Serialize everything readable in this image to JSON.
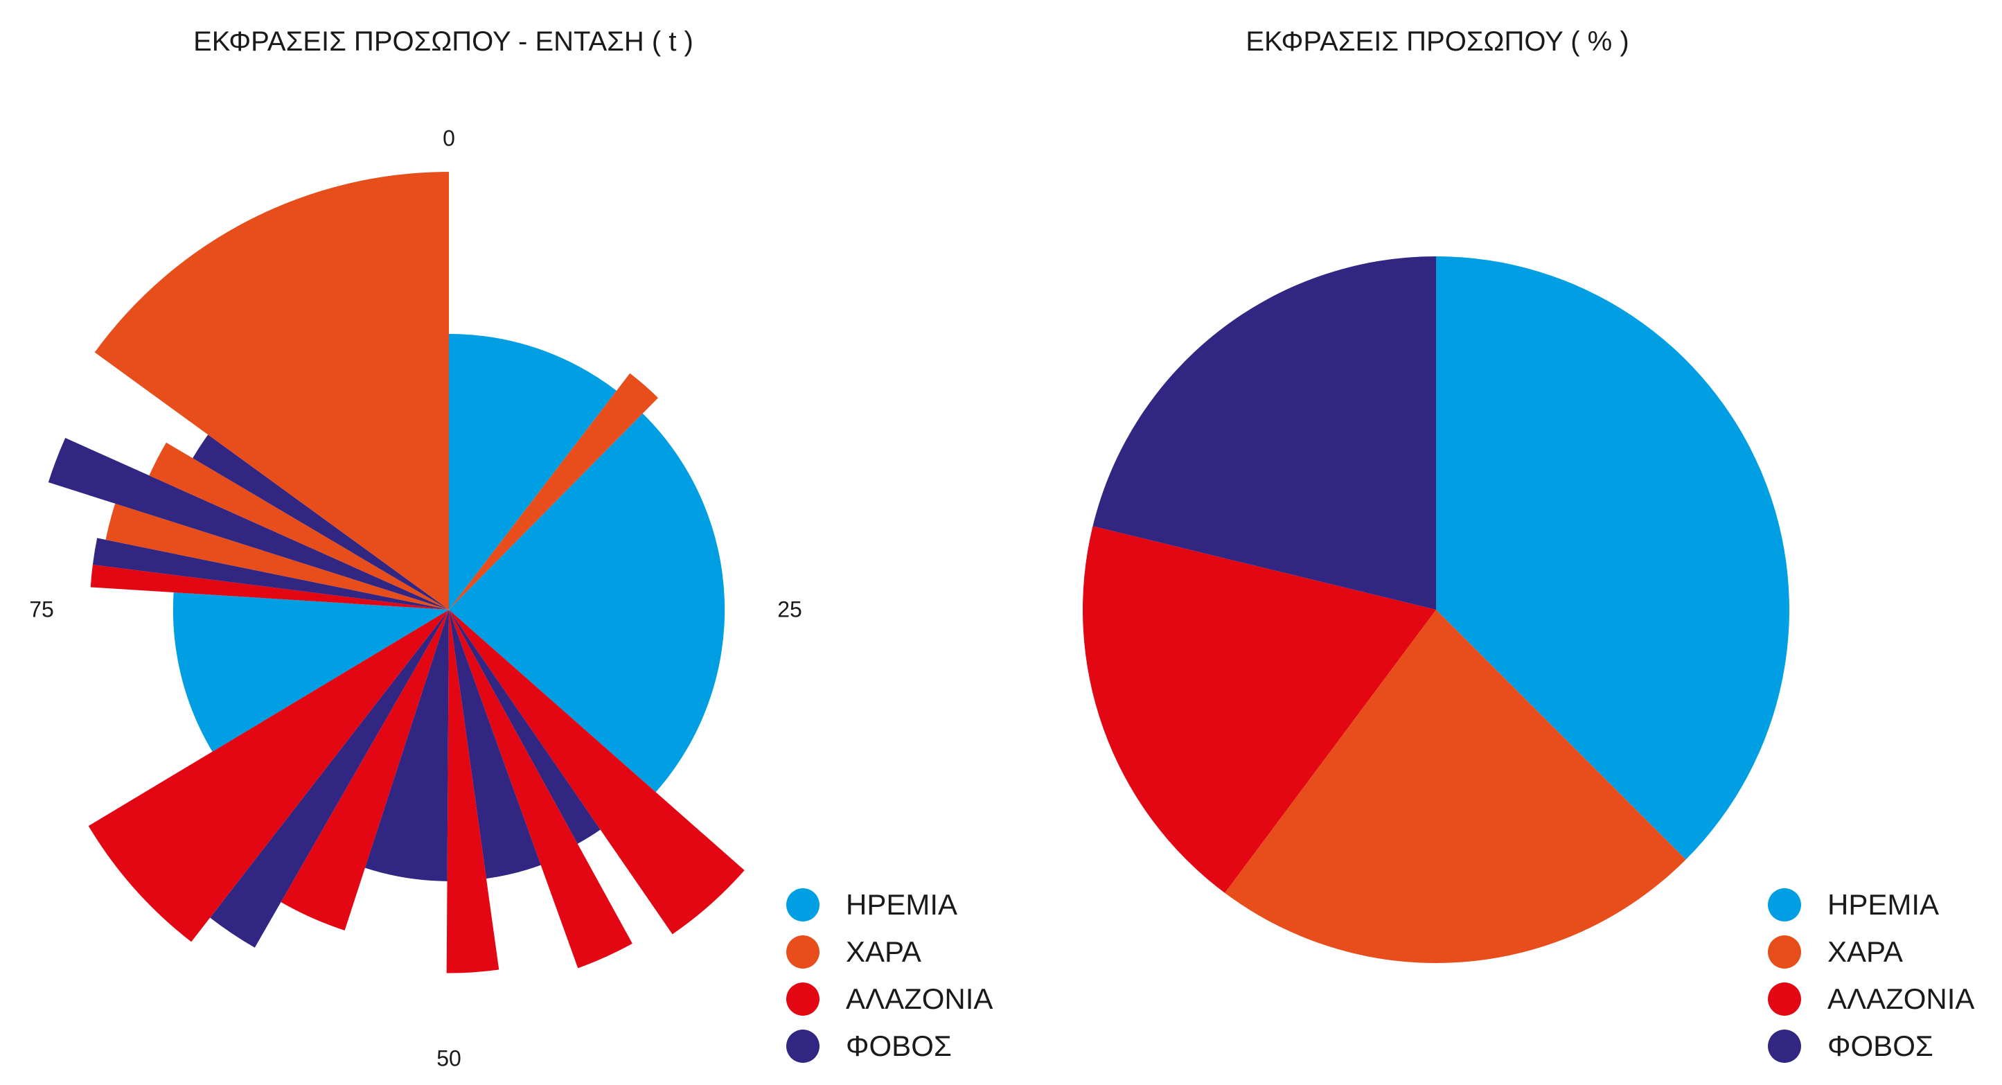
{
  "colors": {
    "hremia": "#009fe3",
    "xara": "#e84e1b",
    "alazonia": "#e30613",
    "fovos": "#312783"
  },
  "legend": [
    {
      "label": "ΗΡΕΜΙΑ",
      "color": "#009fe3"
    },
    {
      "label": "ΧΑΡΑ",
      "color": "#e84e1b"
    },
    {
      "label": "ΑΛΑΖΟΝΙΑ",
      "color": "#e30613"
    },
    {
      "label": "ΦΟΒΟΣ",
      "color": "#312783"
    }
  ],
  "chart_data": [
    {
      "type": "polar-area",
      "title": "ΕΚΦΡΑΣΕΙΣ ΠΡΟΣΩΠΟΥ - ΕΝΤΑΣΗ ( t )",
      "angular_axis": {
        "range": [
          0,
          100
        ],
        "ticks": [
          0,
          25,
          50,
          75
        ],
        "direction": "clockwise",
        "zero": "top"
      },
      "radial_scale_max": 1.0,
      "series": [
        {
          "name": "ΗΡΕΜΙΑ",
          "color": "#009fe3"
        },
        {
          "name": "ΧΑΡΑ",
          "color": "#e84e1b"
        },
        {
          "name": "ΑΛΑΖΟΝΙΑ",
          "color": "#e30613"
        },
        {
          "name": "ΦΟΒΟΣ",
          "color": "#312783"
        }
      ],
      "segments": [
        {
          "start": 0,
          "end": 10.4,
          "value": 0.63,
          "series": "ΗΡΕΜΙΑ"
        },
        {
          "start": 10.4,
          "end": 12.4,
          "value": 0.68,
          "series": "ΧΑΡΑ"
        },
        {
          "start": 12.4,
          "end": 36.5,
          "value": 0.63,
          "series": "ΗΡΕΜΙΑ"
        },
        {
          "start": 36.5,
          "end": 40.4,
          "value": 0.9,
          "series": "ΑΛΑΖΟΝΙΑ"
        },
        {
          "start": 40.4,
          "end": 42.0,
          "value": 0.61,
          "series": "ΦΟΒΟΣ"
        },
        {
          "start": 42.0,
          "end": 44.5,
          "value": 0.87,
          "series": "ΑΛΑΖΟΝΙΑ"
        },
        {
          "start": 44.5,
          "end": 47.8,
          "value": 0.62,
          "series": "ΦΟΒΟΣ"
        },
        {
          "start": 47.8,
          "end": 50.1,
          "value": 0.83,
          "series": "ΑΛΑΖΟΝΙΑ"
        },
        {
          "start": 50.1,
          "end": 55.0,
          "value": 0.62,
          "series": "ΦΟΒΟΣ"
        },
        {
          "start": 55.0,
          "end": 58.3,
          "value": 0.77,
          "series": "ΑΛΑΖΟΝΙΑ"
        },
        {
          "start": 58.3,
          "end": 60.5,
          "value": 0.89,
          "series": "ΦΟΒΟΣ"
        },
        {
          "start": 60.5,
          "end": 66.4,
          "value": 0.96,
          "series": "ΑΛΑΖΟΝΙΑ"
        },
        {
          "start": 66.4,
          "end": 76.0,
          "value": 0.63,
          "series": "ΗΡΕΜΙΑ"
        },
        {
          "start": 76.0,
          "end": 77.0,
          "value": 0.82,
          "series": "ΑΛΑΖΟΝΙΑ"
        },
        {
          "start": 77.0,
          "end": 78.2,
          "value": 0.82,
          "series": "ΦΟΒΟΣ"
        },
        {
          "start": 78.2,
          "end": 79.9,
          "value": 0.8,
          "series": "ΧΑΡΑ"
        },
        {
          "start": 79.9,
          "end": 81.7,
          "value": 0.96,
          "series": "ΦΟΒΟΣ"
        },
        {
          "start": 81.7,
          "end": 83.5,
          "value": 0.75,
          "series": "ΧΑΡΑ"
        },
        {
          "start": 83.5,
          "end": 85.0,
          "value": 0.68,
          "series": "ΦΟΒΟΣ"
        },
        {
          "start": 85.0,
          "end": 100.0,
          "value": 1.0,
          "series": "ΧΑΡΑ"
        }
      ]
    },
    {
      "type": "pie",
      "title": "ΕΚΦΡΑΣΕΙΣ ΠΡΟΣΩΠΟΥ ( % )",
      "start": "top",
      "direction": "clockwise",
      "slices": [
        {
          "label": "ΗΡΕΜΙΑ",
          "value": 37.5,
          "color": "#009fe3"
        },
        {
          "label": "ΧΑΡΑ",
          "value": 22.7,
          "color": "#e84e1b"
        },
        {
          "label": "ΑΛΑΖΟΝΙΑ",
          "value": 18.6,
          "color": "#e30613"
        },
        {
          "label": "ΦΟΒΟΣ",
          "value": 21.2,
          "color": "#312783"
        }
      ]
    }
  ]
}
